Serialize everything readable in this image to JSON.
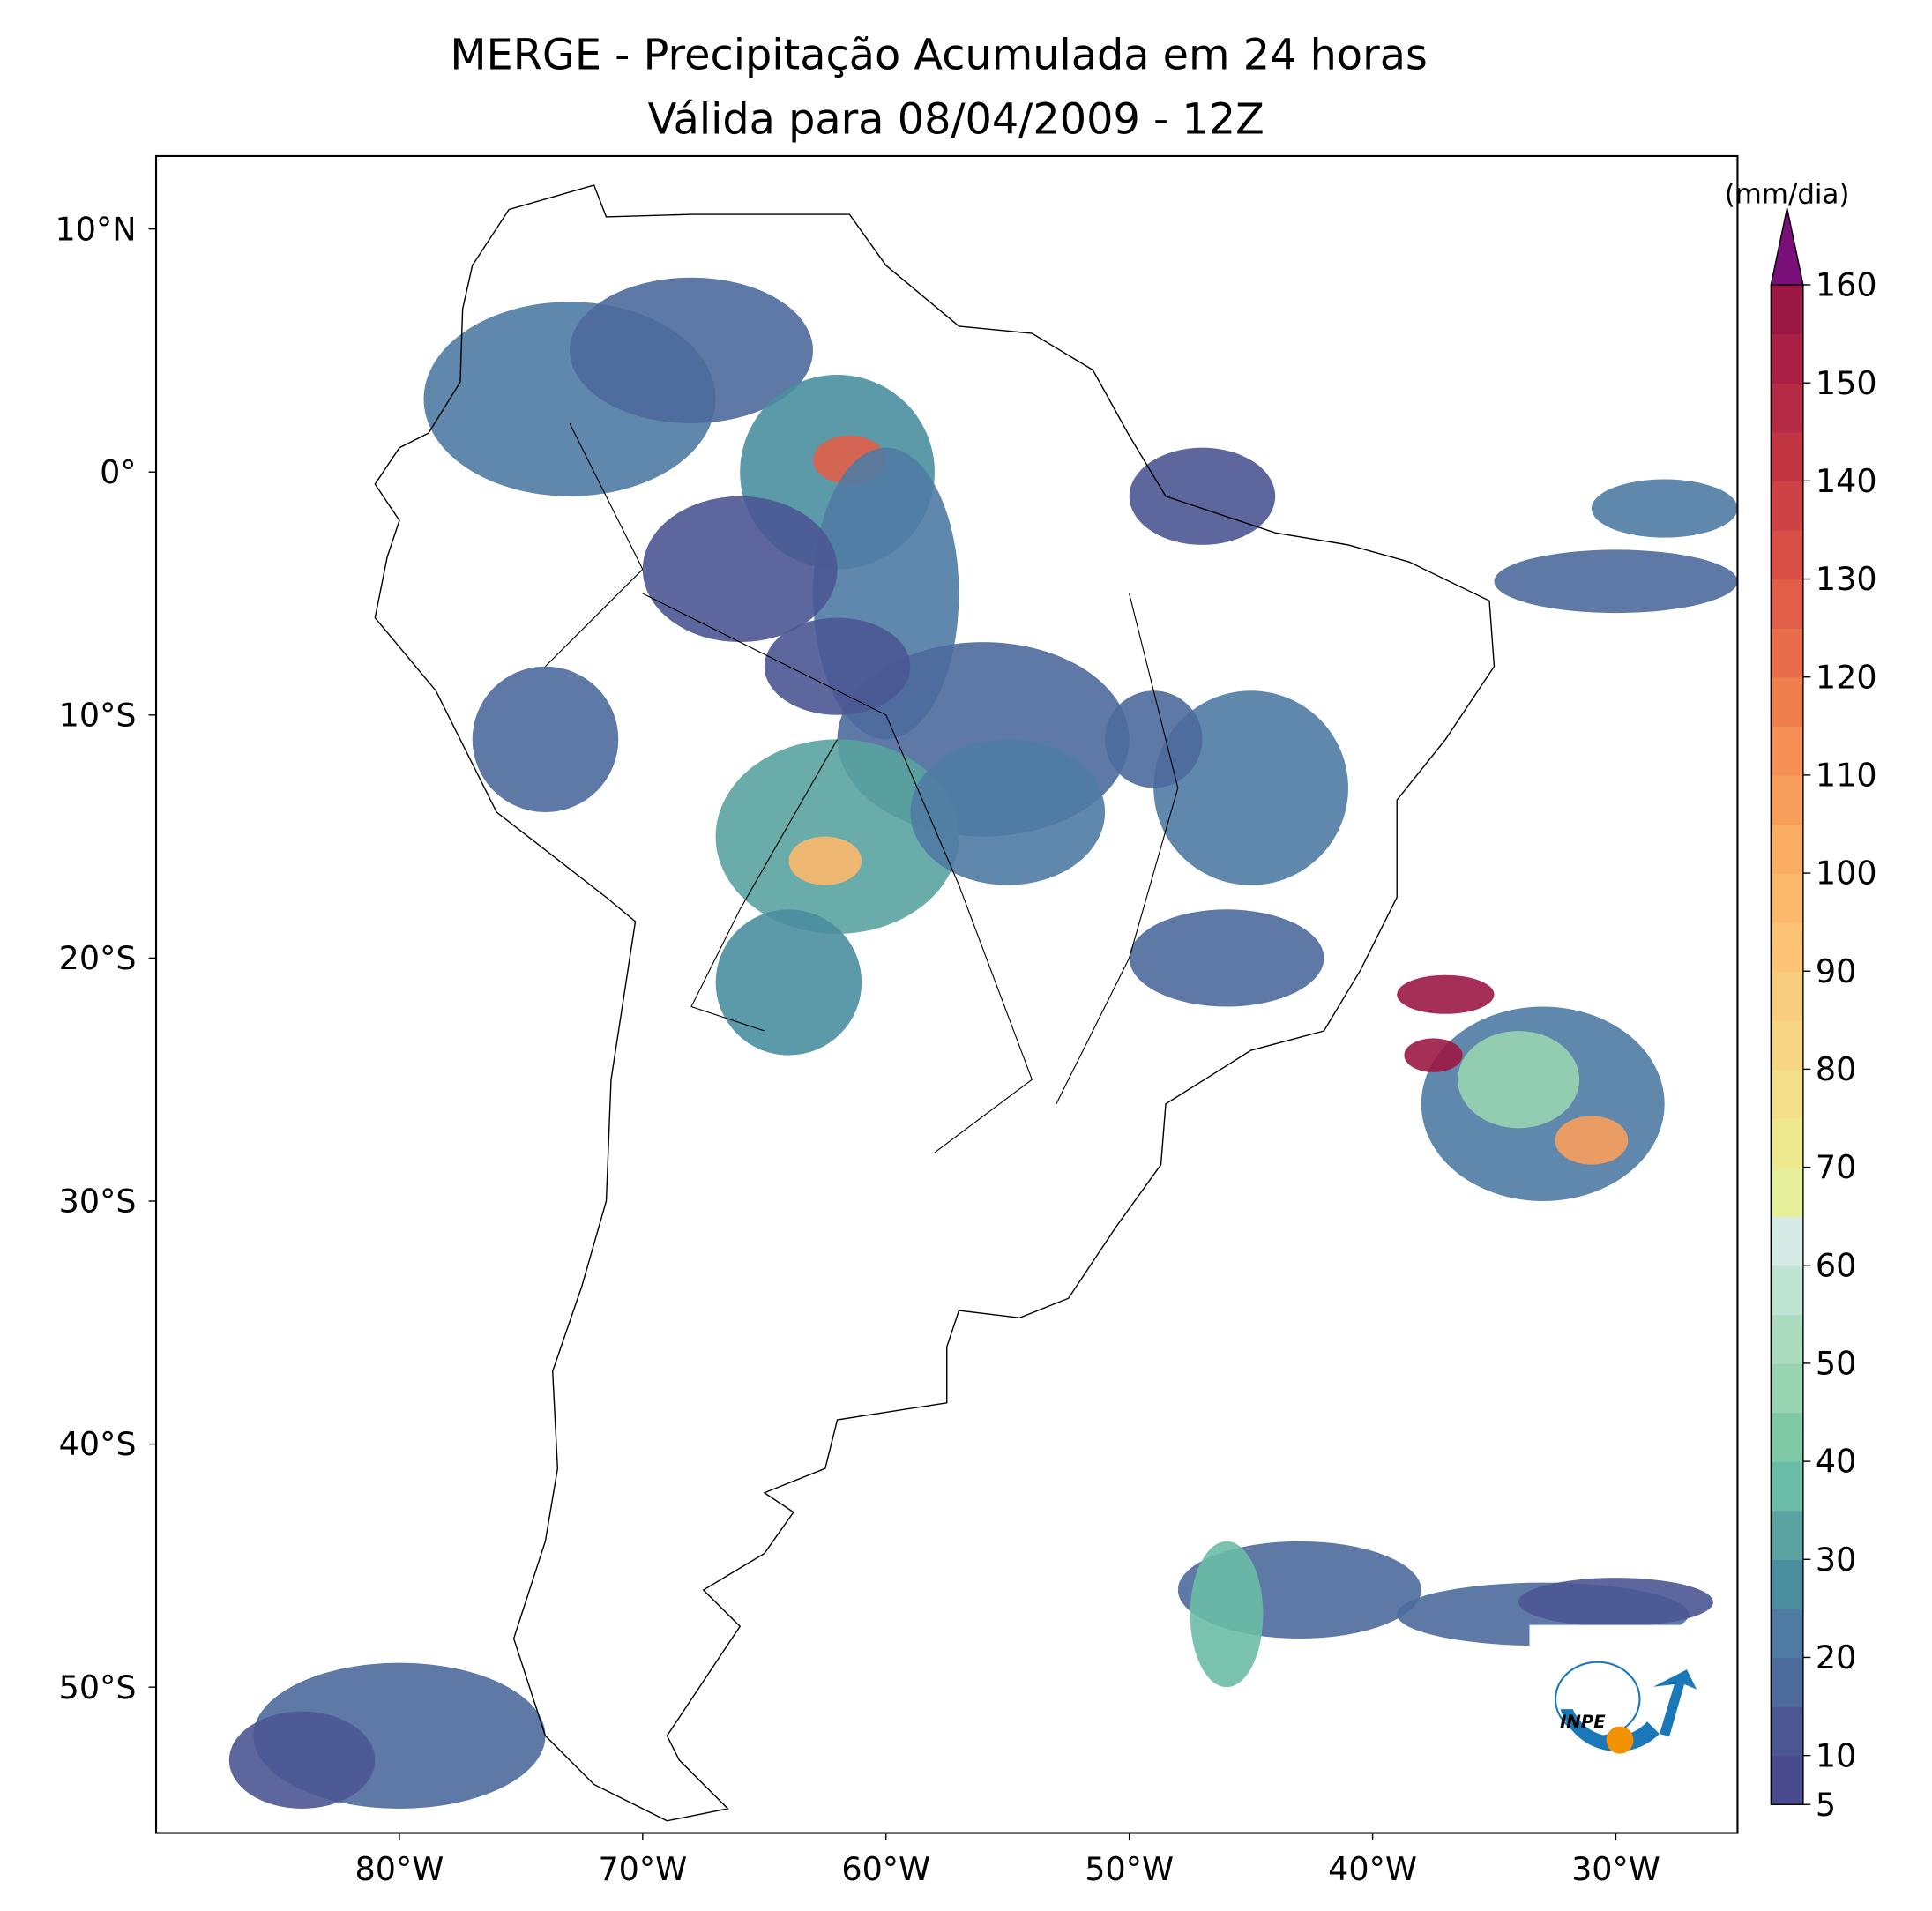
{
  "chart_data": {
    "type": "map",
    "title": "MERGE - Precipitação Acumulada em 24 horas",
    "subtitle": "Válida para 08/04/2009 - 12Z",
    "xlim": [
      -90,
      -25
    ],
    "ylim": [
      -56,
      13
    ],
    "xticks": [
      {
        "value": -80,
        "label": "80°W"
      },
      {
        "value": -70,
        "label": "70°W"
      },
      {
        "value": -60,
        "label": "60°W"
      },
      {
        "value": -50,
        "label": "50°W"
      },
      {
        "value": -40,
        "label": "40°W"
      },
      {
        "value": -30,
        "label": "30°W"
      }
    ],
    "yticks": [
      {
        "value": 10,
        "label": "10°N"
      },
      {
        "value": 0,
        "label": "0°"
      },
      {
        "value": -10,
        "label": "10°S"
      },
      {
        "value": -20,
        "label": "20°S"
      },
      {
        "value": -30,
        "label": "30°S"
      },
      {
        "value": -40,
        "label": "40°S"
      },
      {
        "value": -50,
        "label": "50°S"
      }
    ],
    "colorbar": {
      "label": "(mm/dia)",
      "lim": [
        5,
        160
      ],
      "ticks": [
        5,
        10,
        20,
        30,
        40,
        50,
        60,
        70,
        80,
        90,
        100,
        110,
        120,
        130,
        140,
        150,
        160
      ],
      "colors": [
        "#4a4a8e",
        "#4b5693",
        "#4d6a9c",
        "#4f7ba3",
        "#4a8ea0",
        "#5aa3a0",
        "#6bbca6",
        "#7fc9a6",
        "#98d4b1",
        "#acdcc0",
        "#c0e4d4",
        "#d6ebe5",
        "#e6f09a",
        "#eee98f",
        "#f3df88",
        "#f6d684",
        "#f9cd7e",
        "#fcc374",
        "#fcb86a",
        "#fbad63",
        "#f89e5b",
        "#f48f55",
        "#ef7f4f",
        "#e86e4b",
        "#e15f48",
        "#d84f46",
        "#cd4245",
        "#c23644",
        "#b52b45",
        "#a82045",
        "#9b1844"
      ],
      "extend_color": "#7b0f7a"
    },
    "logo_text": "INPE"
  }
}
